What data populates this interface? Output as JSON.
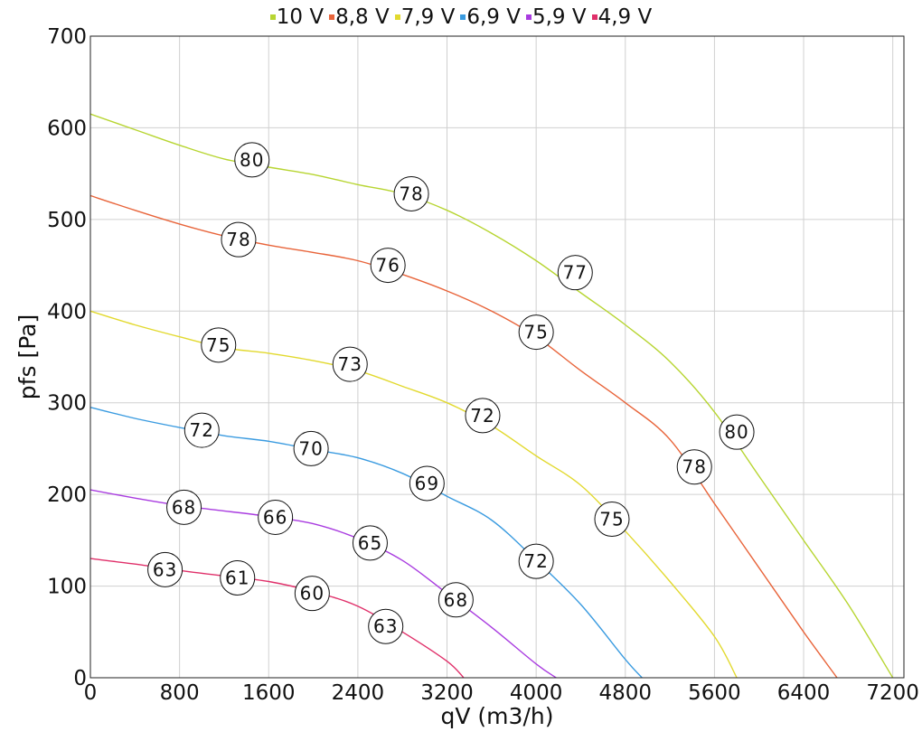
{
  "chart_data": {
    "type": "line",
    "xlabel": "qV (m3/h)",
    "ylabel": "pfs [Pa]",
    "xlim": [
      0,
      7300
    ],
    "ylim": [
      0,
      700
    ],
    "x_ticks": [
      "0",
      "800",
      "1600",
      "2400",
      "3200",
      "4000",
      "4800",
      "5600",
      "6400",
      "7200"
    ],
    "y_ticks": [
      "0",
      "100",
      "200",
      "300",
      "400",
      "500",
      "600",
      "700"
    ],
    "grid": true,
    "legend_position": "top",
    "series": [
      {
        "name": "10 V",
        "color": "#b7d531",
        "points": [
          [
            0,
            615
          ],
          [
            400,
            598
          ],
          [
            800,
            581
          ],
          [
            1200,
            566
          ],
          [
            1600,
            557
          ],
          [
            2000,
            549
          ],
          [
            2400,
            538
          ],
          [
            2800,
            528
          ],
          [
            3200,
            510
          ],
          [
            3600,
            485
          ],
          [
            4000,
            455
          ],
          [
            4400,
            420
          ],
          [
            4800,
            385
          ],
          [
            5200,
            345
          ],
          [
            5600,
            290
          ],
          [
            6000,
            220
          ],
          [
            6400,
            150
          ],
          [
            6800,
            80
          ],
          [
            7200,
            0
          ]
        ],
        "labels": [
          {
            "x": 1450,
            "y": 565,
            "text": "80"
          },
          {
            "x": 2880,
            "y": 528,
            "text": "78"
          },
          {
            "x": 4350,
            "y": 442,
            "text": "77"
          },
          {
            "x": 5800,
            "y": 268,
            "text": "80"
          }
        ]
      },
      {
        "name": "8,8 V",
        "color": "#e8643a",
        "points": [
          [
            0,
            526
          ],
          [
            400,
            510
          ],
          [
            800,
            495
          ],
          [
            1200,
            482
          ],
          [
            1600,
            472
          ],
          [
            2000,
            464
          ],
          [
            2400,
            455
          ],
          [
            2800,
            440
          ],
          [
            3200,
            422
          ],
          [
            3600,
            400
          ],
          [
            4000,
            372
          ],
          [
            4400,
            335
          ],
          [
            4800,
            300
          ],
          [
            5200,
            260
          ],
          [
            5600,
            190
          ],
          [
            6000,
            120
          ],
          [
            6400,
            50
          ],
          [
            6700,
            0
          ]
        ],
        "labels": [
          {
            "x": 1330,
            "y": 478,
            "text": "78"
          },
          {
            "x": 2670,
            "y": 450,
            "text": "76"
          },
          {
            "x": 4000,
            "y": 377,
            "text": "75"
          },
          {
            "x": 5420,
            "y": 230,
            "text": "78"
          }
        ]
      },
      {
        "name": "7,9 V",
        "color": "#e2d92e",
        "points": [
          [
            0,
            400
          ],
          [
            400,
            385
          ],
          [
            800,
            372
          ],
          [
            1200,
            360
          ],
          [
            1600,
            354
          ],
          [
            2000,
            346
          ],
          [
            2400,
            335
          ],
          [
            2800,
            318
          ],
          [
            3200,
            300
          ],
          [
            3600,
            275
          ],
          [
            4000,
            242
          ],
          [
            4400,
            210
          ],
          [
            4800,
            160
          ],
          [
            5200,
            105
          ],
          [
            5600,
            45
          ],
          [
            5800,
            0
          ]
        ],
        "labels": [
          {
            "x": 1150,
            "y": 363,
            "text": "75"
          },
          {
            "x": 2330,
            "y": 342,
            "text": "73"
          },
          {
            "x": 3520,
            "y": 286,
            "text": "72"
          },
          {
            "x": 4680,
            "y": 173,
            "text": "75"
          }
        ]
      },
      {
        "name": "6,9 V",
        "color": "#3a9be0",
        "points": [
          [
            0,
            295
          ],
          [
            400,
            283
          ],
          [
            800,
            273
          ],
          [
            1200,
            264
          ],
          [
            1600,
            258
          ],
          [
            2000,
            249
          ],
          [
            2400,
            240
          ],
          [
            2800,
            223
          ],
          [
            3200,
            198
          ],
          [
            3600,
            172
          ],
          [
            4000,
            128
          ],
          [
            4400,
            80
          ],
          [
            4800,
            20
          ],
          [
            4950,
            0
          ]
        ],
        "labels": [
          {
            "x": 1000,
            "y": 270,
            "text": "72"
          },
          {
            "x": 1980,
            "y": 250,
            "text": "70"
          },
          {
            "x": 3020,
            "y": 212,
            "text": "69"
          },
          {
            "x": 4000,
            "y": 127,
            "text": "72"
          }
        ]
      },
      {
        "name": "5,9 V",
        "color": "#a93ce0",
        "points": [
          [
            0,
            205
          ],
          [
            400,
            196
          ],
          [
            800,
            188
          ],
          [
            1200,
            182
          ],
          [
            1600,
            176
          ],
          [
            2000,
            168
          ],
          [
            2400,
            152
          ],
          [
            2800,
            128
          ],
          [
            3200,
            92
          ],
          [
            3600,
            55
          ],
          [
            4000,
            15
          ],
          [
            4180,
            0
          ]
        ],
        "labels": [
          {
            "x": 840,
            "y": 186,
            "text": "68"
          },
          {
            "x": 1660,
            "y": 175,
            "text": "66"
          },
          {
            "x": 2510,
            "y": 147,
            "text": "65"
          },
          {
            "x": 3280,
            "y": 85,
            "text": "68"
          }
        ]
      },
      {
        "name": "4,9 V",
        "color": "#e0306a",
        "points": [
          [
            0,
            130
          ],
          [
            400,
            124
          ],
          [
            800,
            117
          ],
          [
            1200,
            111
          ],
          [
            1600,
            105
          ],
          [
            2000,
            94
          ],
          [
            2400,
            78
          ],
          [
            2800,
            50
          ],
          [
            3200,
            18
          ],
          [
            3350,
            0
          ]
        ],
        "labels": [
          {
            "x": 670,
            "y": 118,
            "text": "63"
          },
          {
            "x": 1320,
            "y": 109,
            "text": "61"
          },
          {
            "x": 1990,
            "y": 92,
            "text": "60"
          },
          {
            "x": 2650,
            "y": 56,
            "text": "63"
          }
        ]
      }
    ]
  }
}
